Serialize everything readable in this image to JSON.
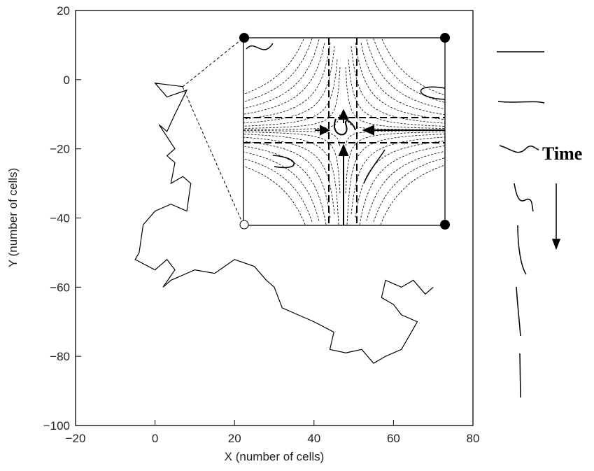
{
  "chart_data": {
    "type": "line",
    "xlabel": "X (number of cells)",
    "ylabel": "Y (number of cells)",
    "annotation": "Time",
    "xlim": [
      -20,
      80
    ],
    "ylim": [
      -100,
      20
    ],
    "xticks": [
      {
        "value": -20,
        "label": "−20"
      },
      0,
      20,
      40,
      60,
      80
    ],
    "yticks": [
      {
        "value": -100,
        "label": "−100"
      },
      {
        "value": -80,
        "label": "−80"
      },
      {
        "value": -60,
        "label": "−60"
      },
      {
        "value": -40,
        "label": "−40"
      },
      {
        "value": -20,
        "label": "−20"
      },
      0,
      20
    ],
    "color": "#000000",
    "x": [
      7,
      0,
      3,
      8,
      5,
      3,
      1,
      5,
      3,
      5,
      4,
      7,
      9,
      8,
      4,
      0,
      -3,
      -4,
      -5,
      0,
      3,
      5,
      2,
      4,
      10,
      15,
      20,
      25,
      28,
      30,
      32,
      36,
      40,
      45,
      44,
      48,
      52,
      55,
      58,
      62,
      64,
      66,
      62,
      60,
      57,
      58,
      62,
      65,
      68,
      70
    ],
    "values": [
      -2,
      -1,
      -5,
      -3,
      -10,
      -15,
      -13,
      -20,
      -22,
      -24,
      -30,
      -28,
      -30,
      -38,
      -36,
      -38,
      -42,
      -50,
      -52,
      -55,
      -52,
      -55,
      -60,
      -58,
      -55,
      -56,
      -52,
      -54,
      -58,
      -60,
      -66,
      -68,
      -70,
      -73,
      -78,
      -79,
      -78,
      -82,
      -80,
      -78,
      -74,
      -70,
      -68,
      -65,
      -63,
      -58,
      -60,
      -58,
      -62,
      -60
    ]
  }
}
